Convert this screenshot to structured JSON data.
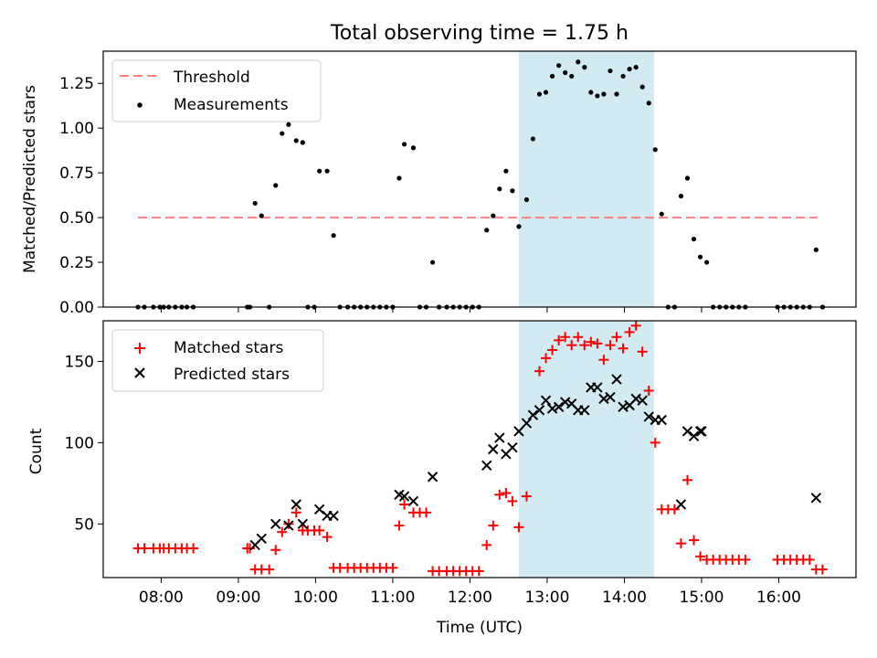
{
  "chart_data": [
    {
      "type": "scatter",
      "title": "Total observing time = 1.75 h",
      "xlabel": "",
      "ylabel": "Matched/Predicted stars",
      "xlim": [
        "07:15",
        "17:00"
      ],
      "ylim": [
        0,
        1.43
      ],
      "yticks": [
        "0.00",
        "0.25",
        "0.50",
        "0.75",
        "1.00",
        "1.25"
      ],
      "legend_position": "upper left",
      "highlight_span": {
        "start": "12:38",
        "end": "14:23",
        "color": "#add8e6"
      },
      "threshold": {
        "name": "Threshold",
        "value": 0.5,
        "x_start": "07:42",
        "x_end": "16:30",
        "color": "#ff7f7f"
      },
      "series": [
        {
          "name": "Measurements",
          "color": "#000000",
          "marker": "dot",
          "points": [
            [
              "07:42",
              0
            ],
            [
              "07:47",
              0
            ],
            [
              "07:54",
              0
            ],
            [
              "07:59",
              0
            ],
            [
              "08:02",
              0
            ],
            [
              "08:06",
              0
            ],
            [
              "08:11",
              0
            ],
            [
              "08:16",
              0
            ],
            [
              "08:20",
              0
            ],
            [
              "08:25",
              0
            ],
            [
              "09:07",
              0
            ],
            [
              "09:09",
              0
            ],
            [
              "09:13",
              0.58
            ],
            [
              "09:18",
              0.51
            ],
            [
              "09:24",
              0
            ],
            [
              "09:29",
              0.68
            ],
            [
              "09:34",
              0.97
            ],
            [
              "09:39",
              1.02
            ],
            [
              "09:45",
              0.93
            ],
            [
              "09:50",
              0.92
            ],
            [
              "09:54",
              0
            ],
            [
              "09:59",
              0
            ],
            [
              "10:03",
              0.76
            ],
            [
              "10:09",
              0.76
            ],
            [
              "10:14",
              0.4
            ],
            [
              "10:19",
              0
            ],
            [
              "10:25",
              0
            ],
            [
              "10:30",
              0
            ],
            [
              "10:35",
              0
            ],
            [
              "10:40",
              0
            ],
            [
              "10:45",
              0
            ],
            [
              "10:50",
              0
            ],
            [
              "10:55",
              0
            ],
            [
              "11:00",
              0
            ],
            [
              "11:05",
              0.72
            ],
            [
              "11:09",
              0.91
            ],
            [
              "11:16",
              0.89
            ],
            [
              "11:21",
              0
            ],
            [
              "11:26",
              0
            ],
            [
              "11:31",
              0.25
            ],
            [
              "11:36",
              0
            ],
            [
              "11:42",
              0
            ],
            [
              "11:47",
              0
            ],
            [
              "11:52",
              0
            ],
            [
              "11:57",
              0
            ],
            [
              "12:02",
              0
            ],
            [
              "12:07",
              0
            ],
            [
              "12:13",
              0.43
            ],
            [
              "12:18",
              0.51
            ],
            [
              "12:23",
              0.66
            ],
            [
              "12:28",
              0.76
            ],
            [
              "12:33",
              0.65
            ],
            [
              "12:38",
              0.45
            ],
            [
              "12:44",
              0.6
            ],
            [
              "12:49",
              0.94
            ],
            [
              "12:54",
              1.19
            ],
            [
              "12:59",
              1.2
            ],
            [
              "13:04",
              1.29
            ],
            [
              "13:09",
              1.35
            ],
            [
              "13:14",
              1.31
            ],
            [
              "13:19",
              1.29
            ],
            [
              "13:24",
              1.37
            ],
            [
              "13:29",
              1.34
            ],
            [
              "13:34",
              1.2
            ],
            [
              "13:39",
              1.18
            ],
            [
              "13:44",
              1.19
            ],
            [
              "13:49",
              1.32
            ],
            [
              "13:54",
              1.19
            ],
            [
              "13:59",
              1.29
            ],
            [
              "14:04",
              1.33
            ],
            [
              "14:09",
              1.34
            ],
            [
              "14:14",
              1.23
            ],
            [
              "14:19",
              1.14
            ],
            [
              "14:24",
              0.88
            ],
            [
              "14:29",
              0.52
            ],
            [
              "14:34",
              0
            ],
            [
              "14:39",
              0
            ],
            [
              "14:44",
              0.62
            ],
            [
              "14:49",
              0.72
            ],
            [
              "14:54",
              0.38
            ],
            [
              "14:59",
              0.28
            ],
            [
              "15:04",
              0.25
            ],
            [
              "15:09",
              0
            ],
            [
              "15:14",
              0
            ],
            [
              "15:19",
              0
            ],
            [
              "15:24",
              0
            ],
            [
              "15:29",
              0
            ],
            [
              "15:34",
              0
            ],
            [
              "15:59",
              0
            ],
            [
              "16:04",
              0
            ],
            [
              "16:09",
              0
            ],
            [
              "16:14",
              0
            ],
            [
              "16:19",
              0
            ],
            [
              "16:24",
              0
            ],
            [
              "16:29",
              0.32
            ],
            [
              "16:34",
              0
            ]
          ]
        }
      ]
    },
    {
      "type": "scatter",
      "title": "",
      "xlabel": "Time (UTC)",
      "ylabel": "Count",
      "xlim": [
        "07:15",
        "17:00"
      ],
      "ylim": [
        17,
        175
      ],
      "yticks": [
        "50",
        "100",
        "150"
      ],
      "xticks": [
        "08:00",
        "09:00",
        "10:00",
        "11:00",
        "12:00",
        "13:00",
        "14:00",
        "15:00",
        "16:00"
      ],
      "legend_position": "upper left",
      "highlight_span": {
        "start": "12:38",
        "end": "14:23",
        "color": "#add8e6"
      },
      "series": [
        {
          "name": "Matched stars",
          "color": "#ff0000",
          "marker": "plus",
          "points": [
            [
              "07:42",
              35
            ],
            [
              "07:47",
              35
            ],
            [
              "07:54",
              35
            ],
            [
              "07:59",
              35
            ],
            [
              "08:02",
              35
            ],
            [
              "08:06",
              35
            ],
            [
              "08:11",
              35
            ],
            [
              "08:16",
              35
            ],
            [
              "08:20",
              35
            ],
            [
              "08:25",
              35
            ],
            [
              "09:07",
              35
            ],
            [
              "09:09",
              35
            ],
            [
              "09:13",
              22
            ],
            [
              "09:18",
              22
            ],
            [
              "09:24",
              22
            ],
            [
              "09:29",
              34
            ],
            [
              "09:34",
              45
            ],
            [
              "09:39",
              50
            ],
            [
              "09:45",
              57
            ],
            [
              "09:50",
              46
            ],
            [
              "09:54",
              46
            ],
            [
              "09:59",
              46
            ],
            [
              "10:03",
              46
            ],
            [
              "10:09",
              42
            ],
            [
              "10:14",
              23
            ],
            [
              "10:19",
              23
            ],
            [
              "10:25",
              23
            ],
            [
              "10:30",
              23
            ],
            [
              "10:35",
              23
            ],
            [
              "10:40",
              23
            ],
            [
              "10:45",
              23
            ],
            [
              "10:50",
              23
            ],
            [
              "10:55",
              23
            ],
            [
              "11:00",
              23
            ],
            [
              "11:05",
              49
            ],
            [
              "11:09",
              62
            ],
            [
              "11:16",
              57
            ],
            [
              "11:21",
              57
            ],
            [
              "11:26",
              57
            ],
            [
              "11:31",
              21
            ],
            [
              "11:36",
              21
            ],
            [
              "11:42",
              21
            ],
            [
              "11:47",
              21
            ],
            [
              "11:52",
              21
            ],
            [
              "11:57",
              21
            ],
            [
              "12:02",
              21
            ],
            [
              "12:07",
              21
            ],
            [
              "12:13",
              37
            ],
            [
              "12:18",
              49
            ],
            [
              "12:23",
              68
            ],
            [
              "12:28",
              69
            ],
            [
              "12:33",
              64
            ],
            [
              "12:38",
              48
            ],
            [
              "12:44",
              67
            ],
            [
              "12:54",
              144
            ],
            [
              "12:59",
              152
            ],
            [
              "13:04",
              157
            ],
            [
              "13:09",
              163
            ],
            [
              "13:14",
              165
            ],
            [
              "13:19",
              160
            ],
            [
              "13:24",
              165
            ],
            [
              "13:29",
              160
            ],
            [
              "13:34",
              162
            ],
            [
              "13:39",
              161
            ],
            [
              "13:44",
              151
            ],
            [
              "13:49",
              160
            ],
            [
              "13:54",
              165
            ],
            [
              "13:59",
              158
            ],
            [
              "14:04",
              168
            ],
            [
              "14:09",
              172
            ],
            [
              "14:14",
              156
            ],
            [
              "14:19",
              132
            ],
            [
              "14:24",
              100
            ],
            [
              "14:29",
              59
            ],
            [
              "14:34",
              59
            ],
            [
              "14:39",
              59
            ],
            [
              "14:44",
              38
            ],
            [
              "14:49",
              77
            ],
            [
              "14:54",
              40
            ],
            [
              "14:59",
              30
            ],
            [
              "15:04",
              28
            ],
            [
              "15:09",
              28
            ],
            [
              "15:14",
              28
            ],
            [
              "15:19",
              28
            ],
            [
              "15:24",
              28
            ],
            [
              "15:29",
              28
            ],
            [
              "15:34",
              28
            ],
            [
              "15:59",
              28
            ],
            [
              "16:04",
              28
            ],
            [
              "16:09",
              28
            ],
            [
              "16:14",
              28
            ],
            [
              "16:19",
              28
            ],
            [
              "16:24",
              28
            ],
            [
              "16:29",
              22
            ],
            [
              "16:34",
              22
            ]
          ]
        },
        {
          "name": "Predicted stars",
          "color": "#000000",
          "marker": "x",
          "points": [
            [
              "09:13",
              37
            ],
            [
              "09:18",
              41
            ],
            [
              "09:29",
              50
            ],
            [
              "09:39",
              49
            ],
            [
              "09:45",
              62
            ],
            [
              "09:50",
              50
            ],
            [
              "10:03",
              59
            ],
            [
              "10:09",
              55
            ],
            [
              "10:14",
              55
            ],
            [
              "11:05",
              68
            ],
            [
              "11:09",
              67
            ],
            [
              "11:16",
              64
            ],
            [
              "11:31",
              79
            ],
            [
              "12:13",
              86
            ],
            [
              "12:18",
              96
            ],
            [
              "12:23",
              103
            ],
            [
              "12:28",
              93
            ],
            [
              "12:33",
              97
            ],
            [
              "12:38",
              107
            ],
            [
              "12:44",
              112
            ],
            [
              "12:49",
              117
            ],
            [
              "12:54",
              120
            ],
            [
              "12:59",
              126
            ],
            [
              "13:04",
              121
            ],
            [
              "13:09",
              122
            ],
            [
              "13:14",
              125
            ],
            [
              "13:19",
              124
            ],
            [
              "13:24",
              120
            ],
            [
              "13:29",
              120
            ],
            [
              "13:34",
              134
            ],
            [
              "13:39",
              134
            ],
            [
              "13:44",
              127
            ],
            [
              "13:49",
              128
            ],
            [
              "13:54",
              139
            ],
            [
              "13:59",
              122
            ],
            [
              "14:04",
              123
            ],
            [
              "14:09",
              127
            ],
            [
              "14:14",
              126
            ],
            [
              "14:19",
              116
            ],
            [
              "14:24",
              114
            ],
            [
              "14:29",
              114
            ],
            [
              "14:44",
              62
            ],
            [
              "14:49",
              107
            ],
            [
              "14:54",
              104
            ],
            [
              "14:59",
              107
            ],
            [
              "15:00",
              107
            ],
            [
              "16:29",
              66
            ]
          ]
        }
      ]
    }
  ]
}
